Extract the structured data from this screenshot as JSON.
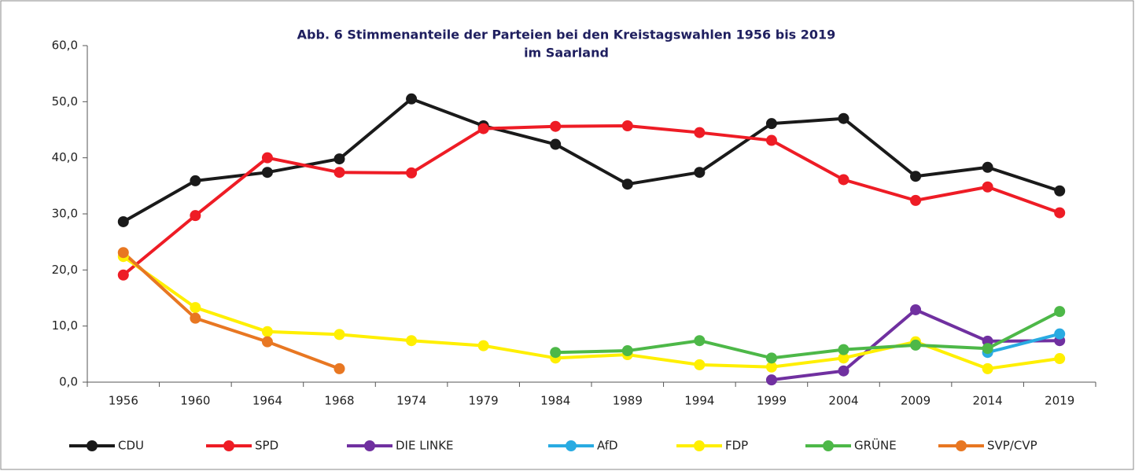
{
  "chart_data": {
    "type": "line",
    "title": "Abb. 6 Stimmenanteile der Parteien bei den Kreistagswahlen 1956 bis 2019",
    "subtitle": "im Saarland",
    "categories": [
      "1956",
      "1960",
      "1964",
      "1968",
      "1974",
      "1979",
      "1984",
      "1989",
      "1994",
      "1999",
      "2004",
      "2009",
      "2014",
      "2019"
    ],
    "ylim": [
      0,
      60
    ],
    "yticks": [
      {
        "value": 0,
        "label": "0,0"
      },
      {
        "value": 10,
        "label": "10,0"
      },
      {
        "value": 20,
        "label": "20,0"
      },
      {
        "value": 30,
        "label": "30,0"
      },
      {
        "value": 40,
        "label": "40,0"
      },
      {
        "value": 50,
        "label": "50,0"
      },
      {
        "value": 60,
        "label": "60,0"
      }
    ],
    "grid": false,
    "legend": "bottom",
    "series": [
      {
        "name": "CDU",
        "color": "#1a1a1a",
        "values": [
          28.6,
          35.9,
          37.4,
          39.8,
          50.5,
          45.7,
          42.4,
          35.3,
          37.4,
          46.1,
          47.0,
          36.7,
          38.3,
          34.1
        ]
      },
      {
        "name": "SPD",
        "color": "#ee1c25",
        "values": [
          19.1,
          29.7,
          40.0,
          37.4,
          37.3,
          45.2,
          45.6,
          45.7,
          44.5,
          43.1,
          36.1,
          32.4,
          34.8,
          30.2
        ]
      },
      {
        "name": "DIE LINKE",
        "color": "#7030a0",
        "values": [
          null,
          null,
          null,
          null,
          null,
          null,
          null,
          null,
          null,
          0.4,
          2.0,
          12.9,
          7.3,
          7.4
        ]
      },
      {
        "name": "AfD",
        "color": "#29abe2",
        "values": [
          null,
          null,
          null,
          null,
          null,
          null,
          null,
          null,
          null,
          null,
          null,
          null,
          5.3,
          8.6
        ]
      },
      {
        "name": "FDP",
        "color": "#ffef00",
        "values": [
          22.4,
          13.3,
          9.0,
          8.5,
          7.4,
          6.5,
          4.3,
          4.9,
          3.1,
          2.7,
          4.3,
          7.2,
          2.4,
          4.2
        ]
      },
      {
        "name": "GRÜNE",
        "color": "#4db848",
        "values": [
          null,
          null,
          null,
          null,
          null,
          null,
          5.3,
          5.6,
          7.4,
          4.3,
          5.8,
          6.6,
          6.0,
          12.6
        ]
      },
      {
        "name": "SVP/CVP",
        "color": "#e87722",
        "values": [
          23.1,
          11.4,
          7.2,
          2.4,
          null,
          null,
          null,
          null,
          null,
          null,
          null,
          null,
          null,
          null
        ]
      }
    ]
  }
}
